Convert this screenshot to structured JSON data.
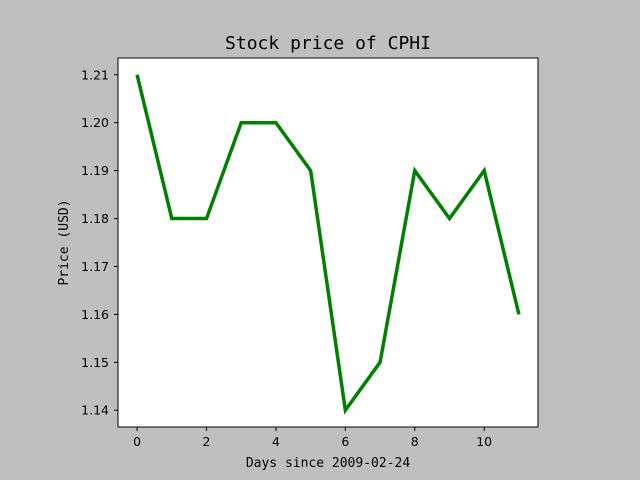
{
  "chart_data": {
    "type": "line",
    "title": "Stock price of CPHI",
    "xlabel": "Days since 2009-02-24",
    "ylabel": "Price (USD)",
    "xlim": [
      -0.55,
      11.55
    ],
    "ylim": [
      1.1365,
      1.2135
    ],
    "xticks": [
      0,
      2,
      4,
      6,
      8,
      10
    ],
    "xtick_labels": [
      "0",
      "2",
      "4",
      "6",
      "8",
      "10"
    ],
    "yticks": [
      1.14,
      1.15,
      1.16,
      1.17,
      1.18,
      1.19,
      1.2,
      1.21
    ],
    "ytick_labels": [
      "1.14",
      "1.15",
      "1.16",
      "1.17",
      "1.18",
      "1.19",
      "1.20",
      "1.21"
    ],
    "grid": false,
    "legend": false,
    "series": [
      {
        "x": [
          0,
          1,
          2,
          3,
          4,
          5,
          6,
          7,
          8,
          9,
          10,
          11
        ],
        "values": [
          1.21,
          1.18,
          1.18,
          1.2,
          1.2,
          1.19,
          1.14,
          1.15,
          1.19,
          1.18,
          1.19,
          1.16
        ],
        "color": "#008000"
      }
    ]
  },
  "colors": {
    "figure_background": "#bfbfbf",
    "plot_background": "#ffffff",
    "axis": "#000000",
    "line": "#008000"
  }
}
